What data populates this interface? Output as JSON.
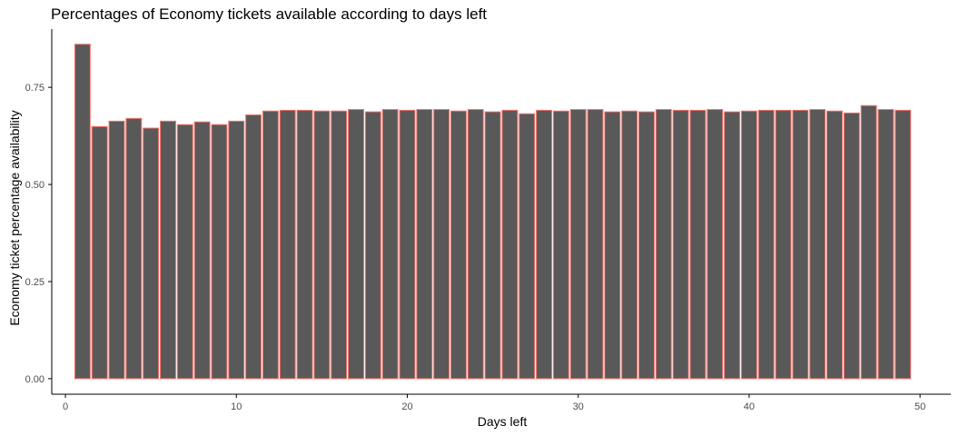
{
  "chart_data": {
    "type": "bar",
    "title": "Percentages of Economy tickets available according to days left",
    "xlabel": "Days left",
    "ylabel": "Economy ticket percentage availability",
    "xlim": [
      -0.8,
      51.8
    ],
    "ylim": [
      -0.04,
      0.9
    ],
    "x_ticks": [
      0,
      10,
      20,
      30,
      40,
      50
    ],
    "y_ticks": [
      0.0,
      0.25,
      0.5,
      0.75
    ],
    "y_tick_labels": [
      "0.00",
      "0.25",
      "0.50",
      "0.75"
    ],
    "grid": false,
    "colors": {
      "bar_fill": "#595959",
      "bar_outline": "#f8766d",
      "axis": "#000000",
      "tick_text": "#4d4d4d"
    },
    "x": [
      1,
      2,
      3,
      4,
      5,
      6,
      7,
      8,
      9,
      10,
      11,
      12,
      13,
      14,
      15,
      16,
      17,
      18,
      19,
      20,
      21,
      22,
      23,
      24,
      25,
      26,
      27,
      28,
      29,
      30,
      31,
      32,
      33,
      34,
      35,
      36,
      37,
      38,
      39,
      40,
      41,
      42,
      43,
      44,
      45,
      46,
      47,
      48,
      49
    ],
    "values": [
      0.861,
      0.649,
      0.663,
      0.67,
      0.645,
      0.663,
      0.654,
      0.661,
      0.654,
      0.663,
      0.679,
      0.689,
      0.691,
      0.691,
      0.689,
      0.689,
      0.693,
      0.687,
      0.693,
      0.691,
      0.693,
      0.693,
      0.689,
      0.693,
      0.687,
      0.691,
      0.682,
      0.691,
      0.689,
      0.693,
      0.693,
      0.687,
      0.689,
      0.687,
      0.693,
      0.691,
      0.691,
      0.693,
      0.687,
      0.689,
      0.691,
      0.691,
      0.691,
      0.693,
      0.689,
      0.684,
      0.703,
      0.693,
      0.691
    ]
  }
}
